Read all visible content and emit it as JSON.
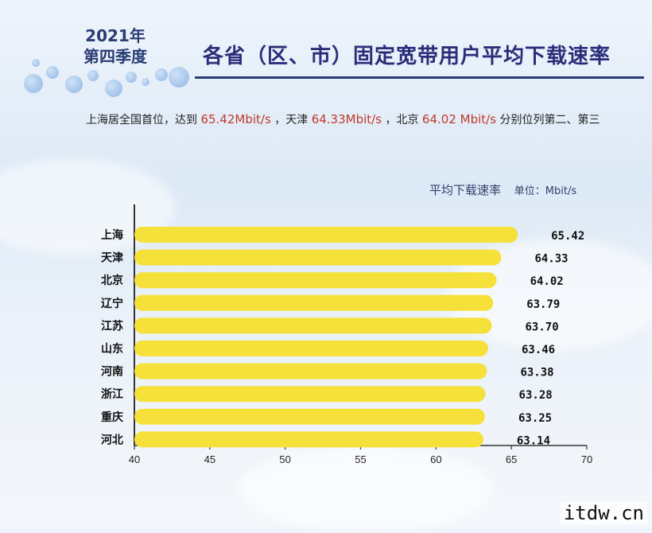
{
  "header": {
    "period_year": "2021年",
    "period_quarter": "第四季度",
    "title": "各省（区、市）固定宽带用户平均下载速率"
  },
  "subtitle": {
    "part1": "上海居全国首位，达到",
    "value1": "65.42Mbit/s",
    "part2": "，天津",
    "value2": "64.33Mbit/s",
    "part3": "，北京",
    "value3": "64.02 Mbit/s",
    "part4": "分别位列第二、第三"
  },
  "legend": {
    "series_label": "平均下载速率",
    "unit_label": "单位：Mbit/s"
  },
  "watermark": "itdw.cn",
  "colors": {
    "bar": "#f5e13a",
    "title": "#2a2e7a",
    "highlight": "#c0392b",
    "axis": "#333333"
  },
  "chart_data": {
    "type": "bar",
    "orientation": "horizontal",
    "categories": [
      "上海",
      "天津",
      "北京",
      "辽宁",
      "江苏",
      "山东",
      "河南",
      "浙江",
      "重庆",
      "河北"
    ],
    "values": [
      65.42,
      64.33,
      64.02,
      63.79,
      63.7,
      63.46,
      63.38,
      63.28,
      63.25,
      63.14
    ],
    "value_labels": [
      "65.42",
      "64.33",
      "64.02",
      "63.79",
      "63.70",
      "63.46",
      "63.38",
      "63.28",
      "63.25",
      "63.14"
    ],
    "xlim": [
      40,
      70
    ],
    "xticks": [
      40,
      45,
      50,
      55,
      60,
      65,
      70
    ],
    "unit": "Mbit/s"
  }
}
